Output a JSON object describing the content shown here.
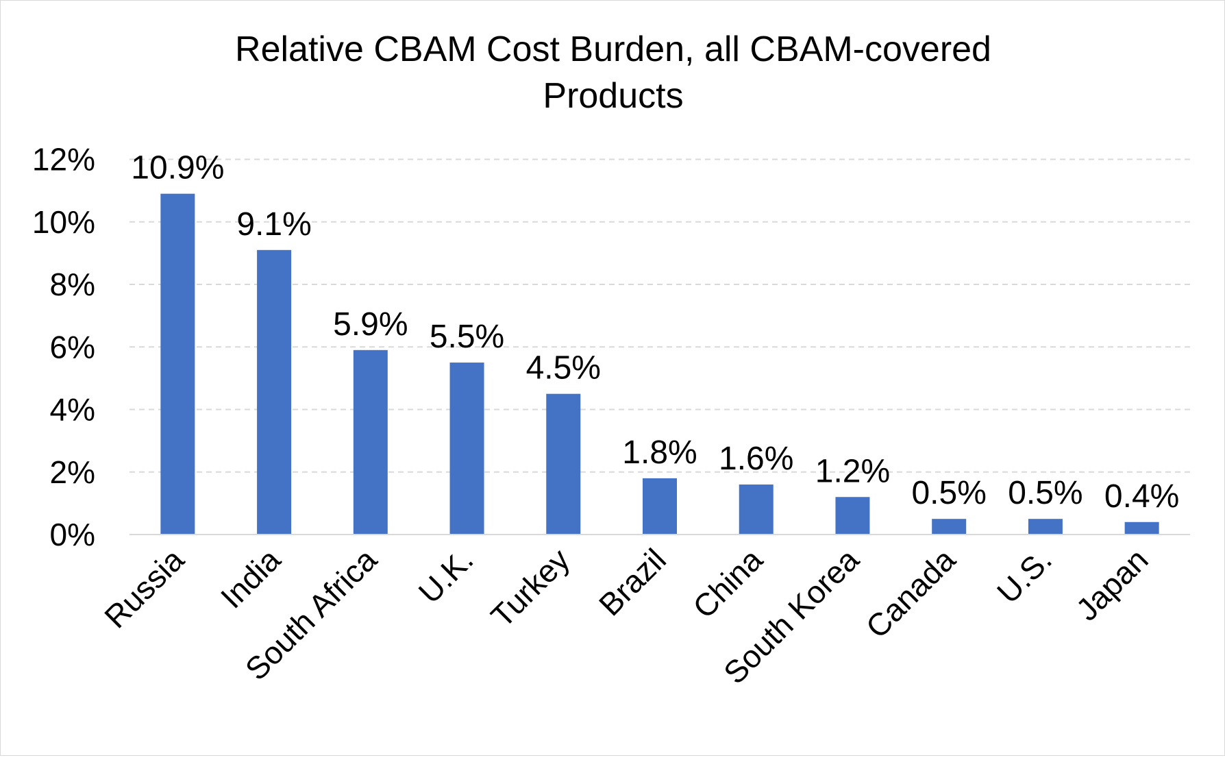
{
  "chart_data": {
    "type": "bar",
    "title": "Relative CBAM Cost Burden, all CBAM-covered Products",
    "title_lines": [
      "Relative CBAM Cost Burden, all CBAM-covered",
      "Products"
    ],
    "xlabel": "",
    "ylabel": "",
    "categories": [
      "Russia",
      "India",
      "South Africa",
      "U.K.",
      "Turkey",
      "Brazil",
      "China",
      "South Korea",
      "Canada",
      "U.S.",
      "Japan"
    ],
    "values": [
      10.9,
      9.1,
      5.9,
      5.5,
      4.5,
      1.8,
      1.6,
      1.2,
      0.5,
      0.5,
      0.4
    ],
    "data_labels": [
      "10.9%",
      "9.1%",
      "5.9%",
      "5.5%",
      "4.5%",
      "1.8%",
      "1.6%",
      "1.2%",
      "0.5%",
      "0.5%",
      "0.4%"
    ],
    "ylim": [
      0,
      12
    ],
    "yticks": [
      0,
      2,
      4,
      6,
      8,
      10,
      12
    ],
    "ytick_labels": [
      "0%",
      "2%",
      "4%",
      "6%",
      "8%",
      "10%",
      "12%"
    ],
    "grid": true,
    "legend": "none",
    "bar_color": "#4472C4",
    "grid_color": "#d9d9d9"
  }
}
